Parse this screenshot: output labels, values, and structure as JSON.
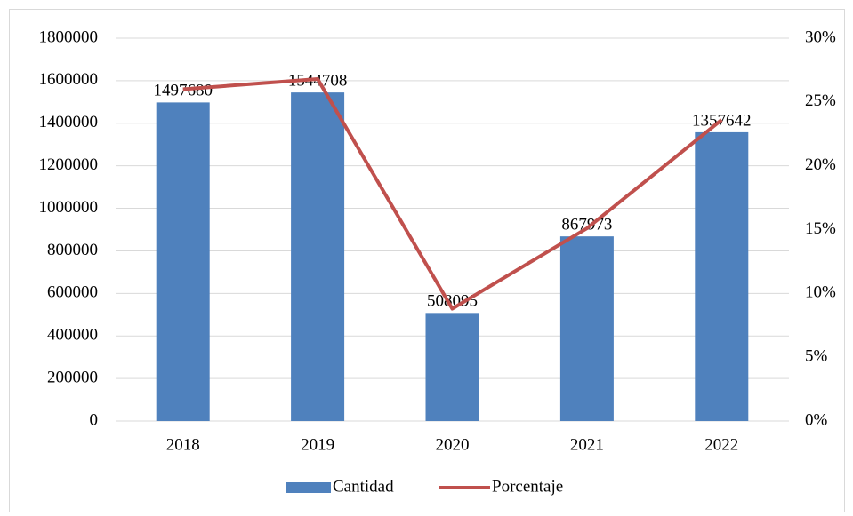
{
  "chart_data": {
    "type": "bar",
    "categories": [
      "2018",
      "2019",
      "2020",
      "2021",
      "2022"
    ],
    "series": [
      {
        "name": "Cantidad",
        "type": "bar",
        "color": "#4f81bd",
        "values": [
          1497680,
          1544708,
          508095,
          867973,
          1357642
        ]
      },
      {
        "name": "Porcentaje",
        "type": "line",
        "axis": "y2",
        "color": "#c0504d",
        "values": [
          26,
          26.8,
          8.8,
          15.1,
          23.6
        ]
      }
    ],
    "ylim": [
      0,
      1800000
    ],
    "yticks": [
      0,
      200000,
      400000,
      600000,
      800000,
      1000000,
      1200000,
      1400000,
      1600000,
      1800000
    ],
    "y2lim": [
      0,
      30
    ],
    "y2ticks": [
      {
        "value": 0,
        "label": "0%"
      },
      {
        "value": 5,
        "label": "5%"
      },
      {
        "value": 10,
        "label": "10%"
      },
      {
        "value": 15,
        "label": "15%"
      },
      {
        "value": 20,
        "label": "20%"
      },
      {
        "value": 25,
        "label": "25%"
      },
      {
        "value": 30,
        "label": "30%"
      }
    ],
    "grid": true,
    "legend": "bottom"
  }
}
